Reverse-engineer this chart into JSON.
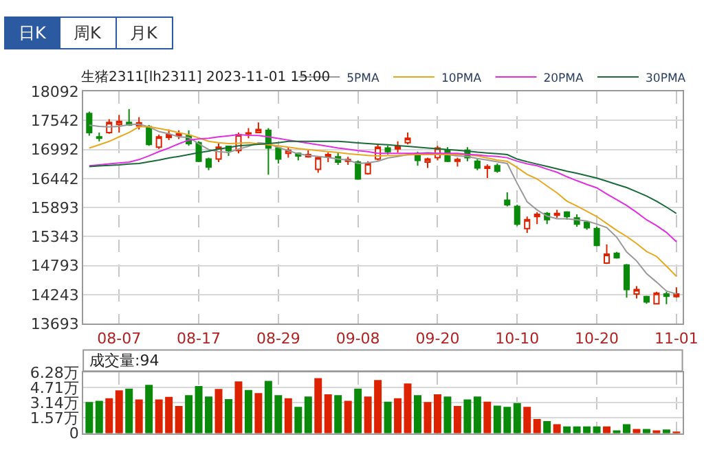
{
  "chart_data": [
    {
      "type": "candlestick",
      "title": "生猪2311[lh2311] 2023-11-01 15:00",
      "annotations": [
        "日K",
        "周K",
        "月K"
      ],
      "categories": [
        null,
        null,
        null,
        "08-07",
        null,
        null,
        null,
        null,
        null,
        null,
        null,
        "08-17",
        null,
        null,
        null,
        null,
        null,
        null,
        null,
        "08-29",
        null,
        null,
        null,
        null,
        null,
        null,
        null,
        "09-08",
        null,
        null,
        null,
        null,
        null,
        null,
        null,
        "09-20",
        null,
        null,
        null,
        null,
        null,
        null,
        null,
        "10-10",
        null,
        null,
        null,
        null,
        null,
        null,
        null,
        "10-20",
        null,
        null,
        null,
        null,
        null,
        null,
        null,
        "11-01"
      ],
      "colors": [
        "#0a8a0a",
        "#0a8a0a",
        "#dd2200",
        "#dd2200",
        "#0a8a0a",
        "#dd2200",
        "#0a8a0a",
        "#dd2200",
        "#dd2200",
        "#dd2200",
        "#0a8a0a",
        "#0a8a0a",
        "#0a8a0a",
        "#dd2200",
        "#0a8a0a",
        "#dd2200",
        "#dd2200",
        "#dd2200",
        "#0a8a0a",
        "#0a8a0a",
        "#dd2200",
        "#0a8a0a",
        "#dd2200",
        "#dd2200",
        "#dd2200",
        "#0a8a0a",
        "#dd2200",
        "#0a8a0a",
        "#dd2200",
        "#dd2200",
        "#0a8a0a",
        "#dd2200",
        "#dd2200",
        "#0a8a0a",
        "#dd2200",
        "#dd2200",
        "#0a8a0a",
        "#dd2200",
        "#0a8a0a",
        "#0a8a0a",
        "#dd2200",
        "#0a8a0a",
        "#0a8a0a",
        "#0a8a0a",
        "#dd2200",
        "#dd2200",
        "#0a8a0a",
        "#dd2200",
        "#0a8a0a",
        "#0a8a0a",
        "#0a8a0a",
        "#0a8a0a",
        "#dd2200",
        "#0a8a0a",
        "#0a8a0a",
        "#dd2200",
        "#0a8a0a",
        "#dd2200",
        "#0a8a0a",
        "#dd2200"
      ],
      "ohlc": [
        [
          17673,
          17707,
          17254,
          17313
        ],
        [
          17229,
          17313,
          17145,
          17204
        ],
        [
          17313,
          17564,
          17288,
          17505
        ],
        [
          17464,
          17648,
          17313,
          17522
        ],
        [
          17505,
          17757,
          17438,
          17455
        ],
        [
          17438,
          17606,
          17371,
          17497
        ],
        [
          17422,
          17455,
          17061,
          17086
        ],
        [
          17036,
          17271,
          17003,
          17229
        ],
        [
          17221,
          17371,
          17170,
          17271
        ],
        [
          17254,
          17355,
          17187,
          17288
        ],
        [
          17254,
          17355,
          17061,
          17103
        ],
        [
          17120,
          17145,
          16751,
          16768
        ],
        [
          16810,
          16835,
          16600,
          16659
        ],
        [
          16810,
          17103,
          16751,
          17036
        ],
        [
          17053,
          17061,
          16868,
          16969
        ],
        [
          16969,
          17313,
          16919,
          17271
        ],
        [
          17305,
          17396,
          17204,
          17288
        ],
        [
          17313,
          17505,
          17305,
          17371
        ],
        [
          17355,
          17396,
          16516,
          17019
        ],
        [
          17019,
          17036,
          16726,
          16810
        ],
        [
          16919,
          17036,
          16835,
          16977
        ],
        [
          16919,
          16935,
          16785,
          16868
        ],
        [
          16894,
          16977,
          16835,
          16852
        ],
        [
          16617,
          16868,
          16550,
          16835
        ],
        [
          16852,
          16935,
          16751,
          16894
        ],
        [
          16852,
          16935,
          16701,
          16751
        ],
        [
          16768,
          16852,
          16701,
          16801
        ],
        [
          16751,
          16785,
          16416,
          16433
        ],
        [
          16533,
          16768,
          16516,
          16726
        ],
        [
          16810,
          17103,
          16785,
          17036
        ],
        [
          17019,
          17061,
          16894,
          16952
        ],
        [
          17003,
          17145,
          16935,
          17053
        ],
        [
          17120,
          17313,
          17086,
          17204
        ],
        [
          16919,
          16952,
          16684,
          16785
        ],
        [
          16751,
          16835,
          16642,
          16810
        ],
        [
          16835,
          17061,
          16785,
          17019
        ],
        [
          16977,
          17036,
          16751,
          16768
        ],
        [
          16768,
          16835,
          16667,
          16801
        ],
        [
          16977,
          17036,
          16768,
          16835
        ],
        [
          16768,
          16810,
          16600,
          16642
        ],
        [
          16634,
          16709,
          16449,
          16667
        ],
        [
          16684,
          16726,
          16550,
          16583
        ],
        [
          16030,
          16181,
          15913,
          15947
        ],
        [
          15913,
          15947,
          15545,
          15578
        ],
        [
          15494,
          15721,
          15411,
          15662
        ],
        [
          15721,
          15805,
          15578,
          15763
        ],
        [
          15780,
          15805,
          15578,
          15662
        ],
        [
          15746,
          15847,
          15696,
          15780
        ],
        [
          15805,
          15822,
          15662,
          15721
        ],
        [
          15696,
          15763,
          15528,
          15578
        ],
        [
          15612,
          15637,
          15469,
          15511
        ],
        [
          15494,
          15528,
          15159,
          15176
        ],
        [
          14841,
          15193,
          14824,
          15008
        ],
        [
          15025,
          15050,
          14925,
          14941
        ],
        [
          14799,
          14824,
          14187,
          14338
        ],
        [
          14254,
          14405,
          14170,
          14338
        ],
        [
          14204,
          14220,
          14070,
          14103
        ],
        [
          14070,
          14296,
          14061,
          14271
        ],
        [
          14254,
          14296,
          14061,
          14212
        ],
        [
          14204,
          14380,
          14187,
          14254
        ]
      ],
      "series": [
        {
          "type": "line",
          "name": "5PMA",
          "color": "#999999",
          "values": [
            17450,
            17430,
            17420,
            17430,
            17460,
            17470,
            17420,
            17330,
            17290,
            17230,
            17220,
            17100,
            16990,
            16950,
            16935,
            17000,
            17050,
            17120,
            17100,
            17030,
            16970,
            16910,
            16880,
            16860,
            16840,
            16810,
            16790,
            16726,
            16740,
            16768,
            16830,
            16860,
            16894,
            16919,
            16935,
            16920,
            16894,
            16870,
            16860,
            16820,
            16790,
            16760,
            16726,
            16350,
            16000,
            15846,
            15730,
            15679,
            15679,
            15660,
            15637,
            15580,
            15512,
            15330,
            15050,
            14880,
            14640,
            14480,
            14310,
            14254
          ]
        },
        {
          "type": "line",
          "name": "10PMA",
          "color": "#e8a820",
          "values": [
            17019,
            17080,
            17145,
            17230,
            17313,
            17422,
            17422,
            17390,
            17355,
            17310,
            17271,
            17210,
            17145,
            17120,
            17103,
            17110,
            17120,
            17100,
            17080,
            17060,
            17036,
            17010,
            16990,
            16970,
            16950,
            16935,
            16910,
            16894,
            16880,
            16868,
            16875,
            16880,
            16890,
            16894,
            16894,
            16894,
            16894,
            16894,
            16894,
            16870,
            16830,
            16790,
            16768,
            16650,
            16520,
            16433,
            16300,
            16170,
            16013,
            15920,
            15820,
            15721,
            15590,
            15460,
            15344,
            15210,
            15060,
            14967,
            14780,
            14590
          ]
        },
        {
          "type": "line",
          "name": "20PMA",
          "color": "#e030e0",
          "values": [
            16684,
            16700,
            16720,
            16735,
            16751,
            16800,
            16870,
            16950,
            17019,
            17100,
            17170,
            17190,
            17204,
            17230,
            17250,
            17271,
            17260,
            17255,
            17230,
            17200,
            17170,
            17140,
            17110,
            17080,
            17050,
            17019,
            16995,
            16970,
            16950,
            16919,
            16919,
            16919,
            16919,
            16919,
            16919,
            16919,
            16919,
            16919,
            16900,
            16890,
            16870,
            16860,
            16835,
            16770,
            16720,
            16684,
            16620,
            16560,
            16475,
            16400,
            16330,
            16265,
            16150,
            16040,
            15930,
            15800,
            15660,
            15550,
            15420,
            15243
          ]
        },
        {
          "type": "line",
          "name": "30PMA",
          "color": "#1a6a3a",
          "values": [
            16667,
            16680,
            16690,
            16700,
            16715,
            16726,
            16760,
            16790,
            16830,
            16860,
            16894,
            16930,
            16960,
            17000,
            17030,
            17061,
            17075,
            17090,
            17103,
            17120,
            17145,
            17145,
            17145,
            17145,
            17145,
            17145,
            17132,
            17118,
            17105,
            17092,
            17080,
            17065,
            17050,
            17035,
            17019,
            17005,
            16990,
            16975,
            16960,
            16940,
            16925,
            16910,
            16894,
            16810,
            16760,
            16715,
            16670,
            16625,
            16580,
            16540,
            16495,
            16449,
            16390,
            16330,
            16270,
            16190,
            16110,
            16013,
            15900,
            15780
          ]
        }
      ],
      "ylim": [
        13693,
        18092
      ],
      "yticks": [
        13693,
        14243,
        14793,
        15343,
        15893,
        16442,
        16992,
        17542,
        18092
      ],
      "grid": true,
      "legend": "top right"
    },
    {
      "type": "bar",
      "title": "成交量:94",
      "categories": [
        null,
        null,
        null,
        null,
        null,
        null,
        null,
        null,
        null,
        null,
        null,
        null,
        null,
        null,
        null,
        null,
        null,
        null,
        null,
        null,
        null,
        null,
        null,
        null,
        null,
        null,
        null,
        null,
        null,
        null,
        null,
        null,
        null,
        null,
        null,
        null,
        null,
        null,
        null,
        null,
        null,
        null,
        null,
        null,
        null,
        null,
        null,
        null,
        null,
        null,
        null,
        null,
        null,
        null,
        null,
        null,
        null,
        null,
        null,
        null
      ],
      "values": [
        3.14,
        3.27,
        3.54,
        4.35,
        4.53,
        3.41,
        4.93,
        3.41,
        3.68,
        2.74,
        3.86,
        4.8,
        3.72,
        4.49,
        3.45,
        5.29,
        4.4,
        4.08,
        5.34,
        3.86,
        3.54,
        2.65,
        3.72,
        5.61,
        3.95,
        3.86,
        3.27,
        4.53,
        3.72,
        5.43,
        3.18,
        3.54,
        5.07,
        3.86,
        3.14,
        3.95,
        3.72,
        2.74,
        3.41,
        3.72,
        3.18,
        2.78,
        2.65,
        3.05,
        2.65,
        1.39,
        1.17,
        0.85,
        0.63,
        0.63,
        0.63,
        0.63,
        0.63,
        0.22,
        0.85,
        0.36,
        0.36,
        0.22,
        0.31,
        0.09
      ],
      "colors": [
        "#0a8a0a",
        "#0a8a0a",
        "#dd2200",
        "#dd2200",
        "#0a8a0a",
        "#dd2200",
        "#0a8a0a",
        "#dd2200",
        "#dd2200",
        "#dd2200",
        "#0a8a0a",
        "#0a8a0a",
        "#0a8a0a",
        "#dd2200",
        "#0a8a0a",
        "#dd2200",
        "#0a8a0a",
        "#dd2200",
        "#0a8a0a",
        "#0a8a0a",
        "#dd2200",
        "#0a8a0a",
        "#0a8a0a",
        "#dd2200",
        "#dd2200",
        "#0a8a0a",
        "#dd2200",
        "#0a8a0a",
        "#dd2200",
        "#dd2200",
        "#0a8a0a",
        "#dd2200",
        "#dd2200",
        "#0a8a0a",
        "#dd2200",
        "#dd2200",
        "#0a8a0a",
        "#dd2200",
        "#0a8a0a",
        "#0a8a0a",
        "#dd2200",
        "#0a8a0a",
        "#0a8a0a",
        "#0a8a0a",
        "#dd2200",
        "#dd2200",
        "#0a8a0a",
        "#dd2200",
        "#0a8a0a",
        "#0a8a0a",
        "#0a8a0a",
        "#0a8a0a",
        "#dd2200",
        "#0a8a0a",
        "#0a8a0a",
        "#dd2200",
        "#0a8a0a",
        "#dd2200",
        "#0a8a0a",
        "#dd2200"
      ],
      "ylim": [
        0,
        6.28
      ],
      "yticks": [
        0,
        {
          "value": 1.57,
          "label": "1.57万"
        },
        {
          "value": 3.14,
          "label": "3.14万"
        },
        {
          "value": 4.71,
          "label": "4.71万"
        },
        {
          "value": 6.28,
          "label": "6.28万"
        }
      ],
      "grid": true,
      "tick_labels": "y"
    }
  ]
}
